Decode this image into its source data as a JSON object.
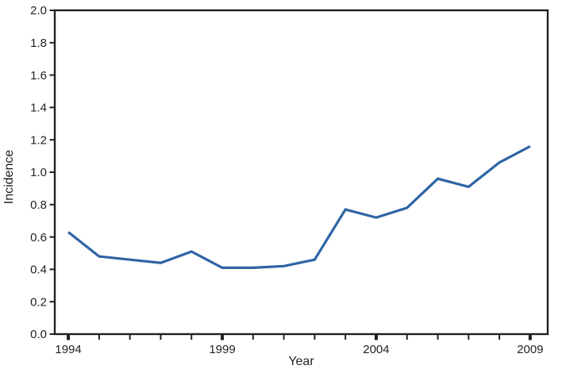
{
  "chart_data": {
    "type": "line",
    "title": "",
    "xlabel": "Year",
    "ylabel": "Incidence",
    "x": [
      1994,
      1995,
      1996,
      1997,
      1998,
      1999,
      2000,
      2001,
      2002,
      2003,
      2004,
      2005,
      2006,
      2007,
      2008,
      2009
    ],
    "series": [
      {
        "name": "Incidence",
        "color": "#2d64a5",
        "values": [
          0.63,
          0.48,
          0.46,
          0.44,
          0.51,
          0.41,
          0.41,
          0.42,
          0.46,
          0.77,
          0.72,
          0.78,
          0.96,
          0.91,
          1.06,
          1.16
        ]
      }
    ],
    "xlim": [
      1993.56,
      2009.57
    ],
    "ylim": [
      0.0,
      2.0
    ],
    "grid": false,
    "legend": false,
    "y_ticks": [
      {
        "v": 0.0,
        "label": "0.0"
      },
      {
        "v": 0.2,
        "label": "0.2"
      },
      {
        "v": 0.4,
        "label": "0.4"
      },
      {
        "v": 0.6,
        "label": "0.6"
      },
      {
        "v": 0.8,
        "label": "0.8"
      },
      {
        "v": 1.0,
        "label": "1.0"
      },
      {
        "v": 1.2,
        "label": "1.2"
      },
      {
        "v": 1.4,
        "label": "1.4"
      },
      {
        "v": 1.6,
        "label": "1.6"
      },
      {
        "v": 1.8,
        "label": "1.8"
      },
      {
        "v": 2.0,
        "label": "2.0"
      }
    ],
    "x_major_ticks": [
      {
        "v": 1994,
        "label": "1994"
      },
      {
        "v": 1999,
        "label": "1999"
      },
      {
        "v": 2004,
        "label": "2004"
      },
      {
        "v": 2009,
        "label": "2009"
      }
    ],
    "x_minor_tick_years": [
      1995,
      1996,
      1997,
      1998,
      2000,
      2001,
      2002,
      2003,
      2005,
      2006,
      2007,
      2008
    ],
    "axis_color": "#231f20",
    "text_color": "#231f20",
    "line_width": 3.2
  }
}
